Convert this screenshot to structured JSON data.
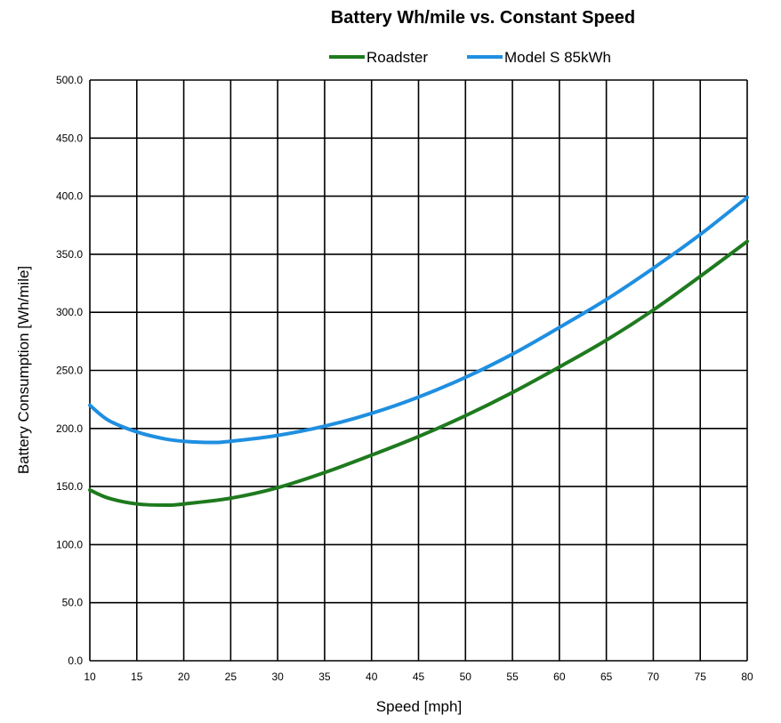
{
  "chart_data": {
    "type": "line",
    "title": "Battery Wh/mile vs. Constant Speed",
    "xlabel": "Speed [mph]",
    "ylabel": "Battery Consumption [Wh/mile]",
    "xlim": [
      10,
      80
    ],
    "ylim": [
      0,
      500
    ],
    "xticks": [
      10,
      15,
      20,
      25,
      30,
      35,
      40,
      45,
      50,
      55,
      60,
      65,
      70,
      75,
      80
    ],
    "yticks": [
      "0.0",
      "50.0",
      "100.0",
      "150.0",
      "200.0",
      "250.0",
      "300.0",
      "350.0",
      "400.0",
      "450.0",
      "500.0"
    ],
    "grid": true,
    "legend": "top",
    "series": [
      {
        "name": "Roadster",
        "color": "#1e7a1e",
        "x": [
          10,
          12,
          15,
          18,
          20,
          25,
          30,
          35,
          40,
          45,
          50,
          55,
          60,
          65,
          70,
          75,
          80
        ],
        "y": [
          147,
          140,
          135,
          134,
          135,
          140,
          149,
          162,
          177,
          193,
          211,
          231,
          253,
          276,
          302,
          331,
          361
        ]
      },
      {
        "name": "Model S 85kWh",
        "color": "#1f8fe0",
        "x": [
          10,
          12,
          15,
          18,
          20,
          23,
          25,
          30,
          35,
          40,
          45,
          50,
          55,
          60,
          65,
          70,
          75,
          80
        ],
        "y": [
          220,
          207,
          197,
          191,
          189,
          188,
          189,
          194,
          202,
          213,
          227,
          244,
          264,
          287,
          311,
          338,
          367,
          399
        ]
      }
    ]
  }
}
